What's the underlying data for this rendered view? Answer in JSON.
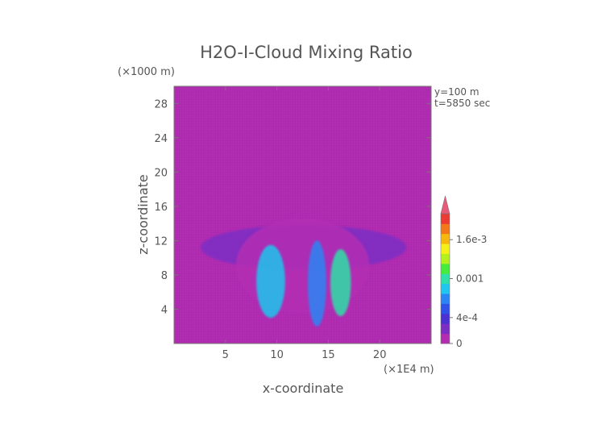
{
  "chart_data": {
    "type": "heatmap",
    "title": "H2O-I-Cloud Mixing Ratio",
    "xlabel": "x-coordinate",
    "ylabel": "z-coordinate",
    "x_unit": "(×1E4 m)",
    "y_unit": "(×1000 m)",
    "xlim": [
      0,
      25
    ],
    "ylim": [
      0,
      30
    ],
    "x_ticks": [
      5,
      10,
      15,
      20
    ],
    "y_ticks": [
      4,
      8,
      12,
      16,
      20,
      24,
      28
    ],
    "annotations": [
      "y=100 m",
      "t=5850 sec"
    ],
    "colorbar": {
      "ticks": [
        {
          "value": 0,
          "label": "0"
        },
        {
          "value": 0.0004,
          "label": "4e-4"
        },
        {
          "value": 0.001,
          "label": "0.001"
        },
        {
          "value": 0.0016,
          "label": "1.6e-3"
        }
      ],
      "max": 0.002,
      "extend": "max",
      "colors": [
        "#b32db3",
        "#7b2ec4",
        "#4b31d2",
        "#2f52e8",
        "#2a86f4",
        "#1fc6ee",
        "#2fe0a8",
        "#46ec3c",
        "#b4f01c",
        "#f5f01a",
        "#f6b80f",
        "#f2781a",
        "#ec3b33",
        "#e85a78"
      ]
    },
    "field_regions": [
      {
        "x": [
          2.6,
          22.6
        ],
        "z": [
          8.6,
          13.8
        ],
        "value": 0.00018
      },
      {
        "x": [
          6.0,
          19.0
        ],
        "z": [
          3.5,
          14.6
        ],
        "value": 8e-05
      },
      {
        "x": [
          8.0,
          10.8
        ],
        "z": [
          3.0,
          11.5
        ],
        "value": 0.0009
      },
      {
        "x": [
          15.2,
          17.2
        ],
        "z": [
          3.2,
          11.0
        ],
        "value": 0.001
      },
      {
        "x": [
          13.0,
          14.8
        ],
        "z": [
          2.0,
          12.0
        ],
        "value": 0.0006
      }
    ],
    "colors": {
      "background_field": "#b32db3",
      "text": "#555555"
    }
  }
}
